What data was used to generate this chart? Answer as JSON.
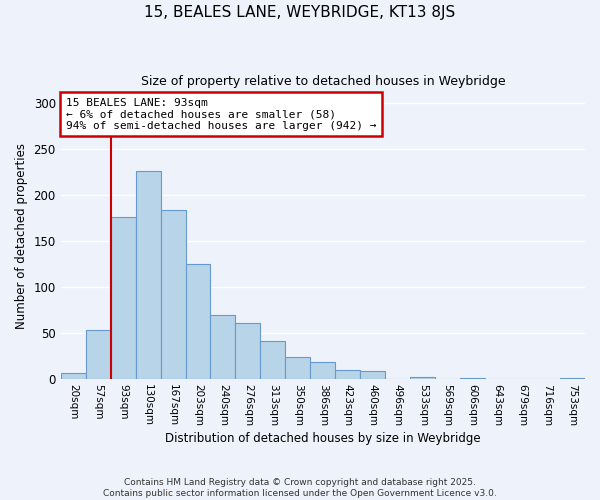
{
  "title": "15, BEALES LANE, WEYBRIDGE, KT13 8JS",
  "subtitle": "Size of property relative to detached houses in Weybridge",
  "xlabel": "Distribution of detached houses by size in Weybridge",
  "ylabel": "Number of detached properties",
  "bin_labels": [
    "20sqm",
    "57sqm",
    "93sqm",
    "130sqm",
    "167sqm",
    "203sqm",
    "240sqm",
    "276sqm",
    "313sqm",
    "350sqm",
    "386sqm",
    "423sqm",
    "460sqm",
    "496sqm",
    "533sqm",
    "569sqm",
    "606sqm",
    "643sqm",
    "679sqm",
    "716sqm",
    "753sqm"
  ],
  "bar_values": [
    7,
    54,
    176,
    226,
    184,
    125,
    70,
    61,
    42,
    24,
    19,
    10,
    9,
    0,
    3,
    0,
    2,
    0,
    0,
    0,
    2
  ],
  "bar_color": "#b8d4e8",
  "bar_edge_color": "#6699cc",
  "vline_color": "#cc0000",
  "annotation_title": "15 BEALES LANE: 93sqm",
  "annotation_line1": "← 6% of detached houses are smaller (58)",
  "annotation_line2": "94% of semi-detached houses are larger (942) →",
  "annotation_box_color": "white",
  "annotation_box_edge_color": "#cc0000",
  "ylim": [
    0,
    310
  ],
  "yticks": [
    0,
    50,
    100,
    150,
    200,
    250,
    300
  ],
  "footnote1": "Contains HM Land Registry data © Crown copyright and database right 2025.",
  "footnote2": "Contains public sector information licensed under the Open Government Licence v3.0.",
  "background_color": "#eef2fa",
  "grid_color": "#ffffff"
}
